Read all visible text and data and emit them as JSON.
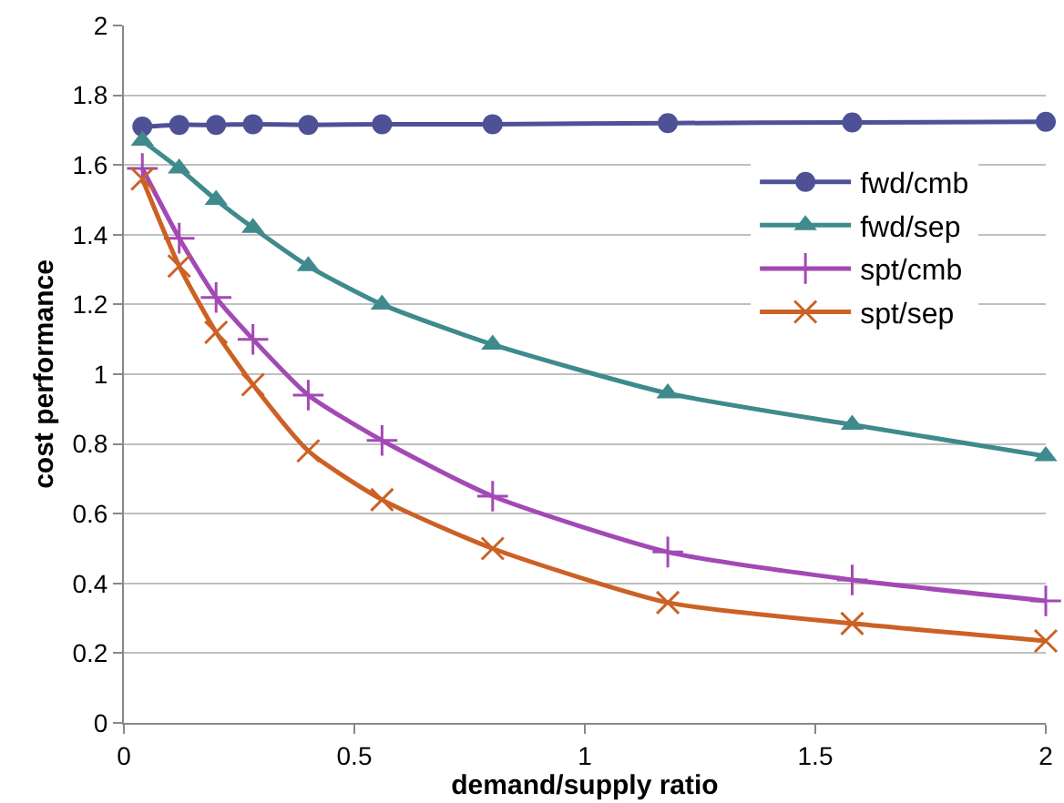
{
  "chart_data": {
    "type": "line",
    "xlabel": "demand/supply ratio",
    "ylabel": "cost performance",
    "x": [
      0.04,
      0.12,
      0.2,
      0.28,
      0.4,
      0.56,
      0.8,
      1.18,
      1.58,
      2.0
    ],
    "xlim": [
      0,
      2
    ],
    "xticks": [
      0,
      0.5,
      1,
      1.5,
      2
    ],
    "ylim": [
      0,
      2
    ],
    "yticks": [
      0,
      0.2,
      0.4,
      0.6,
      0.8,
      1,
      1.2,
      1.4,
      1.6,
      1.8,
      2
    ],
    "grid": "y",
    "legend": "right",
    "line_style": "solid",
    "series": [
      {
        "name": "fwd/cmb",
        "color": "#4f5196",
        "marker": "circle",
        "values": [
          1.71,
          1.715,
          1.715,
          1.717,
          1.715,
          1.717,
          1.717,
          1.72,
          1.722,
          1.724
        ]
      },
      {
        "name": "fwd/sep",
        "color": "#3f8a8c",
        "marker": "triangle",
        "values": [
          1.67,
          1.59,
          1.5,
          1.42,
          1.31,
          1.2,
          1.085,
          0.945,
          0.855,
          0.765
        ]
      },
      {
        "name": "spt/cmb",
        "color": "#a349b5",
        "marker": "cross",
        "values": [
          1.59,
          1.39,
          1.22,
          1.1,
          0.94,
          0.81,
          0.65,
          0.49,
          0.41,
          0.35
        ]
      },
      {
        "name": "spt/sep",
        "color": "#cc6125",
        "marker": "x",
        "values": [
          1.56,
          1.31,
          1.12,
          0.97,
          0.78,
          0.64,
          0.5,
          0.345,
          0.285,
          0.235
        ]
      }
    ]
  }
}
